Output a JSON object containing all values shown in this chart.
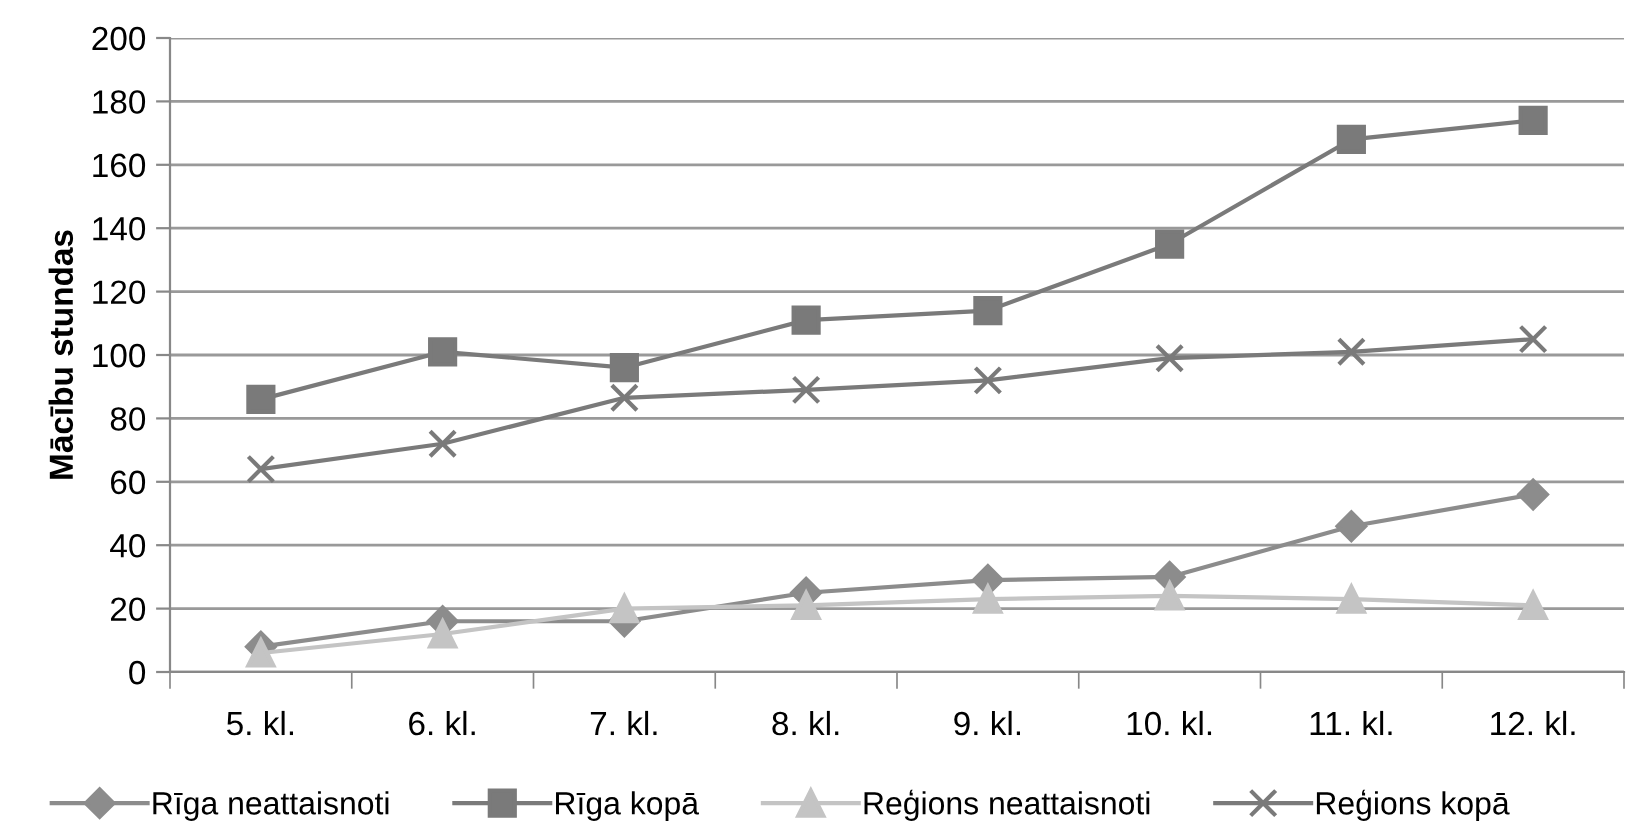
{
  "chart_data": {
    "type": "line",
    "ylabel": "Mācību stundas",
    "categories": [
      "5. kl.",
      "6. kl.",
      "7. kl.",
      "8. kl.",
      "9. kl.",
      "10. kl.",
      "11. kl.",
      "12. kl."
    ],
    "series": [
      {
        "name": "Rīga neattaisnoti",
        "color": "#8c8c8c",
        "marker": "diamond",
        "values": [
          8,
          16,
          16,
          25,
          29,
          30,
          46,
          56
        ]
      },
      {
        "name": "Rīga kopā",
        "color": "#7a7a7a",
        "marker": "square",
        "values": [
          86,
          101,
          96,
          111,
          114,
          135,
          168,
          174
        ]
      },
      {
        "name": "Reģions neattaisnoti",
        "color": "#c4c4c4",
        "marker": "triangle",
        "values": [
          6,
          12,
          20,
          21,
          23,
          24,
          23,
          21
        ]
      },
      {
        "name": "Reģions kopā",
        "color": "#7a7a7a",
        "marker": "cross",
        "values": [
          64,
          72,
          86.5,
          89,
          92,
          99,
          101,
          105
        ]
      }
    ],
    "ylim": [
      0,
      200
    ],
    "yticks": [
      0,
      20,
      40,
      60,
      80,
      100,
      120,
      140,
      160,
      180,
      200
    ],
    "grid": "y",
    "legend": "bottom",
    "line_style": "solid"
  }
}
